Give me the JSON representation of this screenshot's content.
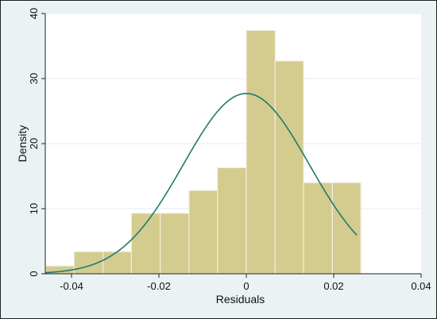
{
  "chart_data": {
    "type": "bar",
    "xlabel": "Residuals",
    "ylabel": "Density",
    "xlim": [
      -0.046,
      0.04
    ],
    "ylim": [
      0,
      40
    ],
    "xticks": [
      -0.04,
      -0.02,
      0,
      0.02,
      0.04
    ],
    "xtick_labels": [
      "-0.04",
      "-0.02",
      "0",
      "0.02",
      "0.04"
    ],
    "yticks": [
      0,
      10,
      20,
      30,
      40
    ],
    "ytick_labels": [
      "0",
      "10",
      "20",
      "30",
      "40"
    ],
    "bins": [
      {
        "x0": -0.0459,
        "x1": -0.0394,
        "density": 1.2
      },
      {
        "x0": -0.0394,
        "x1": -0.0328,
        "density": 3.4
      },
      {
        "x0": -0.0328,
        "x1": -0.0263,
        "density": 3.4
      },
      {
        "x0": -0.0263,
        "x1": -0.0197,
        "density": 9.3
      },
      {
        "x0": -0.0197,
        "x1": -0.0131,
        "density": 9.3
      },
      {
        "x0": -0.0131,
        "x1": -0.0066,
        "density": 12.8
      },
      {
        "x0": -0.0066,
        "x1": 0.0,
        "density": 16.3
      },
      {
        "x0": 0.0,
        "x1": 0.0066,
        "density": 37.4
      },
      {
        "x0": 0.0066,
        "x1": 0.0131,
        "density": 32.7
      },
      {
        "x0": 0.0131,
        "x1": 0.0197,
        "density": 14.0
      },
      {
        "x0": 0.0197,
        "x1": 0.0262,
        "density": 14.0
      }
    ],
    "normal_curve": {
      "mean": 0.0,
      "sd": 0.0144,
      "x_range": [
        -0.0459,
        0.0253
      ]
    },
    "grid": true,
    "colors": {
      "bar_fill": "#d4cb8f",
      "bar_edge": "#efeede",
      "curve": "#1f7a6e",
      "plot_bg": "#ffffff",
      "outer_bg": "#eaf2f3",
      "grid": "#e6eef0"
    }
  }
}
